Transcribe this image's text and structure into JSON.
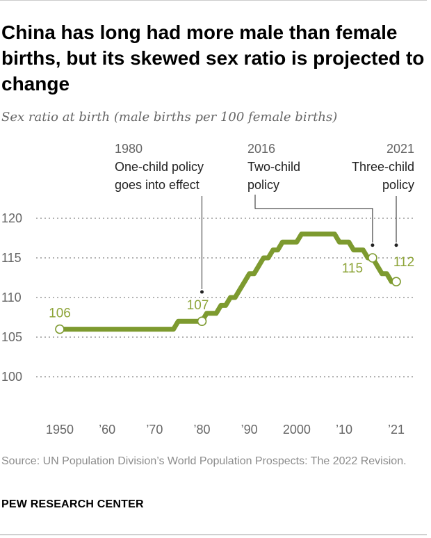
{
  "title": "China has long had more male than female births, but its skewed sex ratio is projected to change",
  "subtitle": "Sex ratio at birth (male births per 100 female births)",
  "source": "Source: UN Population Division’s World Population Prospects: The 2022 Revision.",
  "credit": "PEW RESEARCH CENTER",
  "colors": {
    "line": "#7d9a2f",
    "label": "#8da438",
    "grid": "#999999",
    "text": "#222222",
    "axis_text": "#666666"
  },
  "chart_data": {
    "type": "line",
    "title": "China has long had more male than female births, but its skewed sex ratio is projected to change",
    "subtitle": "Sex ratio at birth (male births per 100 female births)",
    "xlabel": "",
    "ylabel": "",
    "xlim": [
      1950,
      2021
    ],
    "ylim": [
      100,
      120
    ],
    "yticks": [
      100,
      105,
      110,
      115,
      120
    ],
    "ytick_labels": [
      "100",
      "105",
      "110",
      "115",
      "120"
    ],
    "xticks": [
      1950,
      1960,
      1970,
      1980,
      1990,
      2000,
      2010,
      2021
    ],
    "xtick_labels": [
      "1950",
      "’60",
      "’70",
      "’80",
      "’90",
      "2000",
      "’10",
      "’21"
    ],
    "grid": "horizontal dotted",
    "series": [
      {
        "x": [
          1950,
          1951,
          1952,
          1953,
          1954,
          1955,
          1956,
          1957,
          1958,
          1959,
          1960,
          1961,
          1962,
          1963,
          1964,
          1965,
          1966,
          1967,
          1968,
          1969,
          1970,
          1971,
          1972,
          1973,
          1974,
          1975,
          1976,
          1977,
          1978,
          1979,
          1980,
          1981,
          1982,
          1983,
          1984,
          1985,
          1986,
          1987,
          1988,
          1989,
          1990,
          1991,
          1992,
          1993,
          1994,
          1995,
          1996,
          1997,
          1998,
          1999,
          2000,
          2001,
          2002,
          2003,
          2004,
          2005,
          2006,
          2007,
          2008,
          2009,
          2010,
          2011,
          2012,
          2013,
          2014,
          2015,
          2016,
          2017,
          2018,
          2019,
          2020,
          2021
        ],
        "values": [
          106,
          106,
          106,
          106,
          106,
          106,
          106,
          106,
          106,
          106,
          106,
          106,
          106,
          106,
          106,
          106,
          106,
          106,
          106,
          106,
          106,
          106,
          106,
          106,
          106,
          107,
          107,
          107,
          107,
          107,
          107,
          108,
          108,
          108,
          109,
          109,
          110,
          110,
          111,
          112,
          113,
          113,
          114,
          115,
          115,
          116,
          116,
          117,
          117,
          117,
          117,
          118,
          118,
          118,
          118,
          118,
          118,
          118,
          118,
          117,
          117,
          117,
          116,
          116,
          116,
          115,
          115,
          114,
          113,
          113,
          112,
          112
        ]
      }
    ],
    "points": [
      {
        "x": 1950,
        "y": 106,
        "label": "106"
      },
      {
        "x": 1980,
        "y": 107,
        "label": "107"
      },
      {
        "x": 2016,
        "y": 115,
        "label": "115"
      },
      {
        "x": 2021,
        "y": 112,
        "label": "112"
      }
    ],
    "annotations": [
      {
        "year": "1980",
        "lines": [
          "One-child policy",
          "goes into effect"
        ],
        "x": 1980,
        "y": 110.7
      },
      {
        "year": "2016",
        "lines": [
          "Two-child",
          "policy"
        ],
        "x": 2016,
        "y": 116.6
      },
      {
        "year": "2021",
        "lines": [
          "Three-child",
          "policy"
        ],
        "x": 2021,
        "y": 116.6
      }
    ]
  }
}
